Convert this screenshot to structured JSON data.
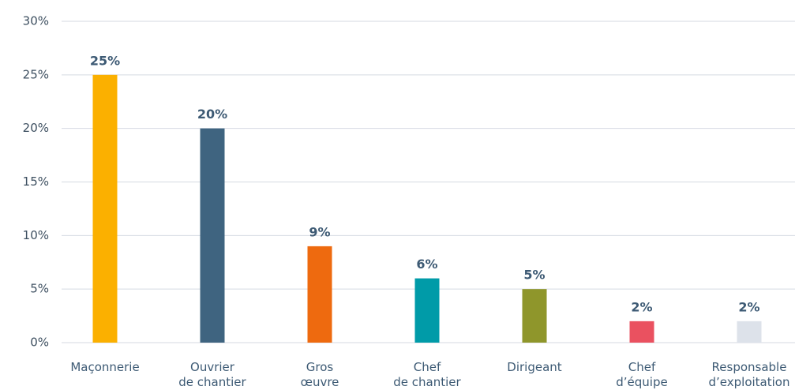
{
  "chart_data": {
    "type": "bar",
    "categories": [
      "Maçonnerie",
      "Ouvrier\nde chantier",
      "Gros\nœuvre",
      "Chef\nde chantier",
      "Dirigeant",
      "Chef\nd’équipe",
      "Responsable\nd’exploitation"
    ],
    "values": [
      25,
      20,
      9,
      6,
      5,
      2,
      2
    ],
    "value_labels": [
      "25%",
      "20%",
      "9%",
      "6%",
      "5%",
      "2%",
      "2%"
    ],
    "colors": [
      "#fbb000",
      "#3f6480",
      "#ee6a0f",
      "#009ba8",
      "#8f962b",
      "#ea5160",
      "#dde2ea"
    ],
    "ylim": [
      0,
      30
    ],
    "yticks": [
      {
        "value": 0,
        "label": "0%"
      },
      {
        "value": 5,
        "label": "5%"
      },
      {
        "value": 10,
        "label": "10%"
      },
      {
        "value": 15,
        "label": "15%"
      },
      {
        "value": 20,
        "label": "20%"
      },
      {
        "value": 25,
        "label": "25%"
      },
      {
        "value": 30,
        "label": "30%"
      }
    ],
    "grid": true
  }
}
